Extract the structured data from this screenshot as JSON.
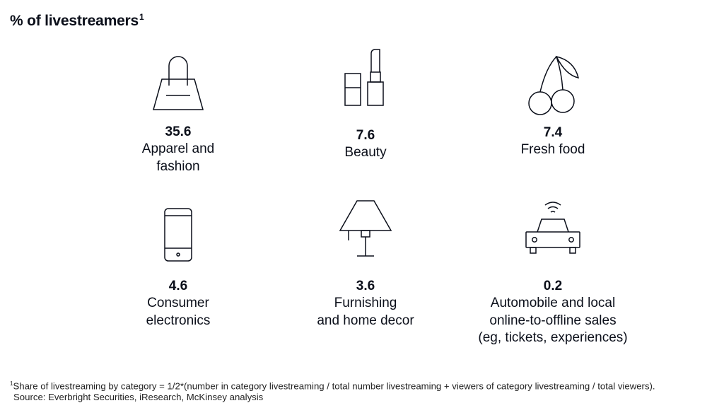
{
  "chart_data": {
    "type": "table",
    "title": "% of livestreamers",
    "title_footnote_marker": "1",
    "items": [
      {
        "value": "35.6",
        "label": "Apparel and fashion",
        "label_lines": [
          "Apparel and",
          "fashion"
        ],
        "icon": "handbag-icon"
      },
      {
        "value": "7.6",
        "label": "Beauty",
        "label_lines": [
          "Beauty"
        ],
        "icon": "lipstick-icon"
      },
      {
        "value": "7.4",
        "label": "Fresh food",
        "label_lines": [
          "Fresh food"
        ],
        "icon": "cherries-icon"
      },
      {
        "value": "4.6",
        "label": "Consumer electronics",
        "label_lines": [
          "Consumer",
          "electronics"
        ],
        "icon": "smartphone-icon"
      },
      {
        "value": "3.6",
        "label": "Furnishing and home decor",
        "label_lines": [
          "Furnishing",
          "and home decor"
        ],
        "icon": "lamp-icon"
      },
      {
        "value": "0.2",
        "label": "Automobile and local online-to-offline sales (eg, tickets, experiences)",
        "label_lines": [
          "Automobile and local",
          "online-to-offline sales",
          "(eg, tickets, experiences)"
        ],
        "icon": "connected-car-icon"
      }
    ]
  },
  "footnote": {
    "marker": "1",
    "text": "Share of livestreaming by category = 1/2*(number in category livestreaming / total number livestreaming + viewers of category livestreaming / total viewers).",
    "source": "Source: Everbright Securities, iResearch, McKinsey analysis"
  },
  "colors": {
    "text": "#0b0f1a",
    "icon_stroke": "#0b0f1a"
  }
}
